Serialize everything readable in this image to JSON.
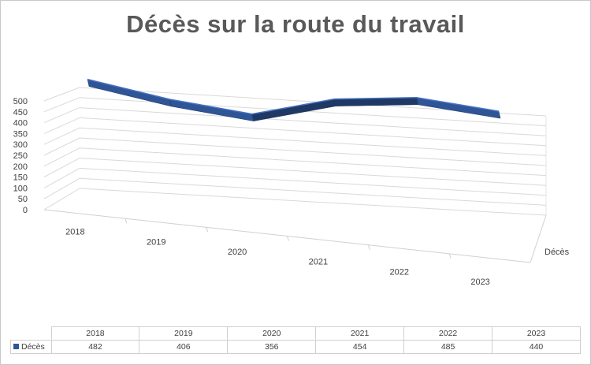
{
  "chart_data": {
    "type": "line",
    "title": "Décès sur la route du travail",
    "categories": [
      "2018",
      "2019",
      "2020",
      "2021",
      "2022",
      "2023"
    ],
    "series": [
      {
        "name": "Décès",
        "values": [
          482,
          406,
          356,
          454,
          485,
          440
        ],
        "color": "#2f5597"
      }
    ],
    "ylim": [
      0,
      500
    ],
    "yticks": [
      "0",
      "50",
      "100",
      "150",
      "200",
      "250",
      "300",
      "350",
      "400",
      "450",
      "500"
    ],
    "depth_axis_label": "Décès",
    "grid": true,
    "view": "3d",
    "data_table": true
  }
}
